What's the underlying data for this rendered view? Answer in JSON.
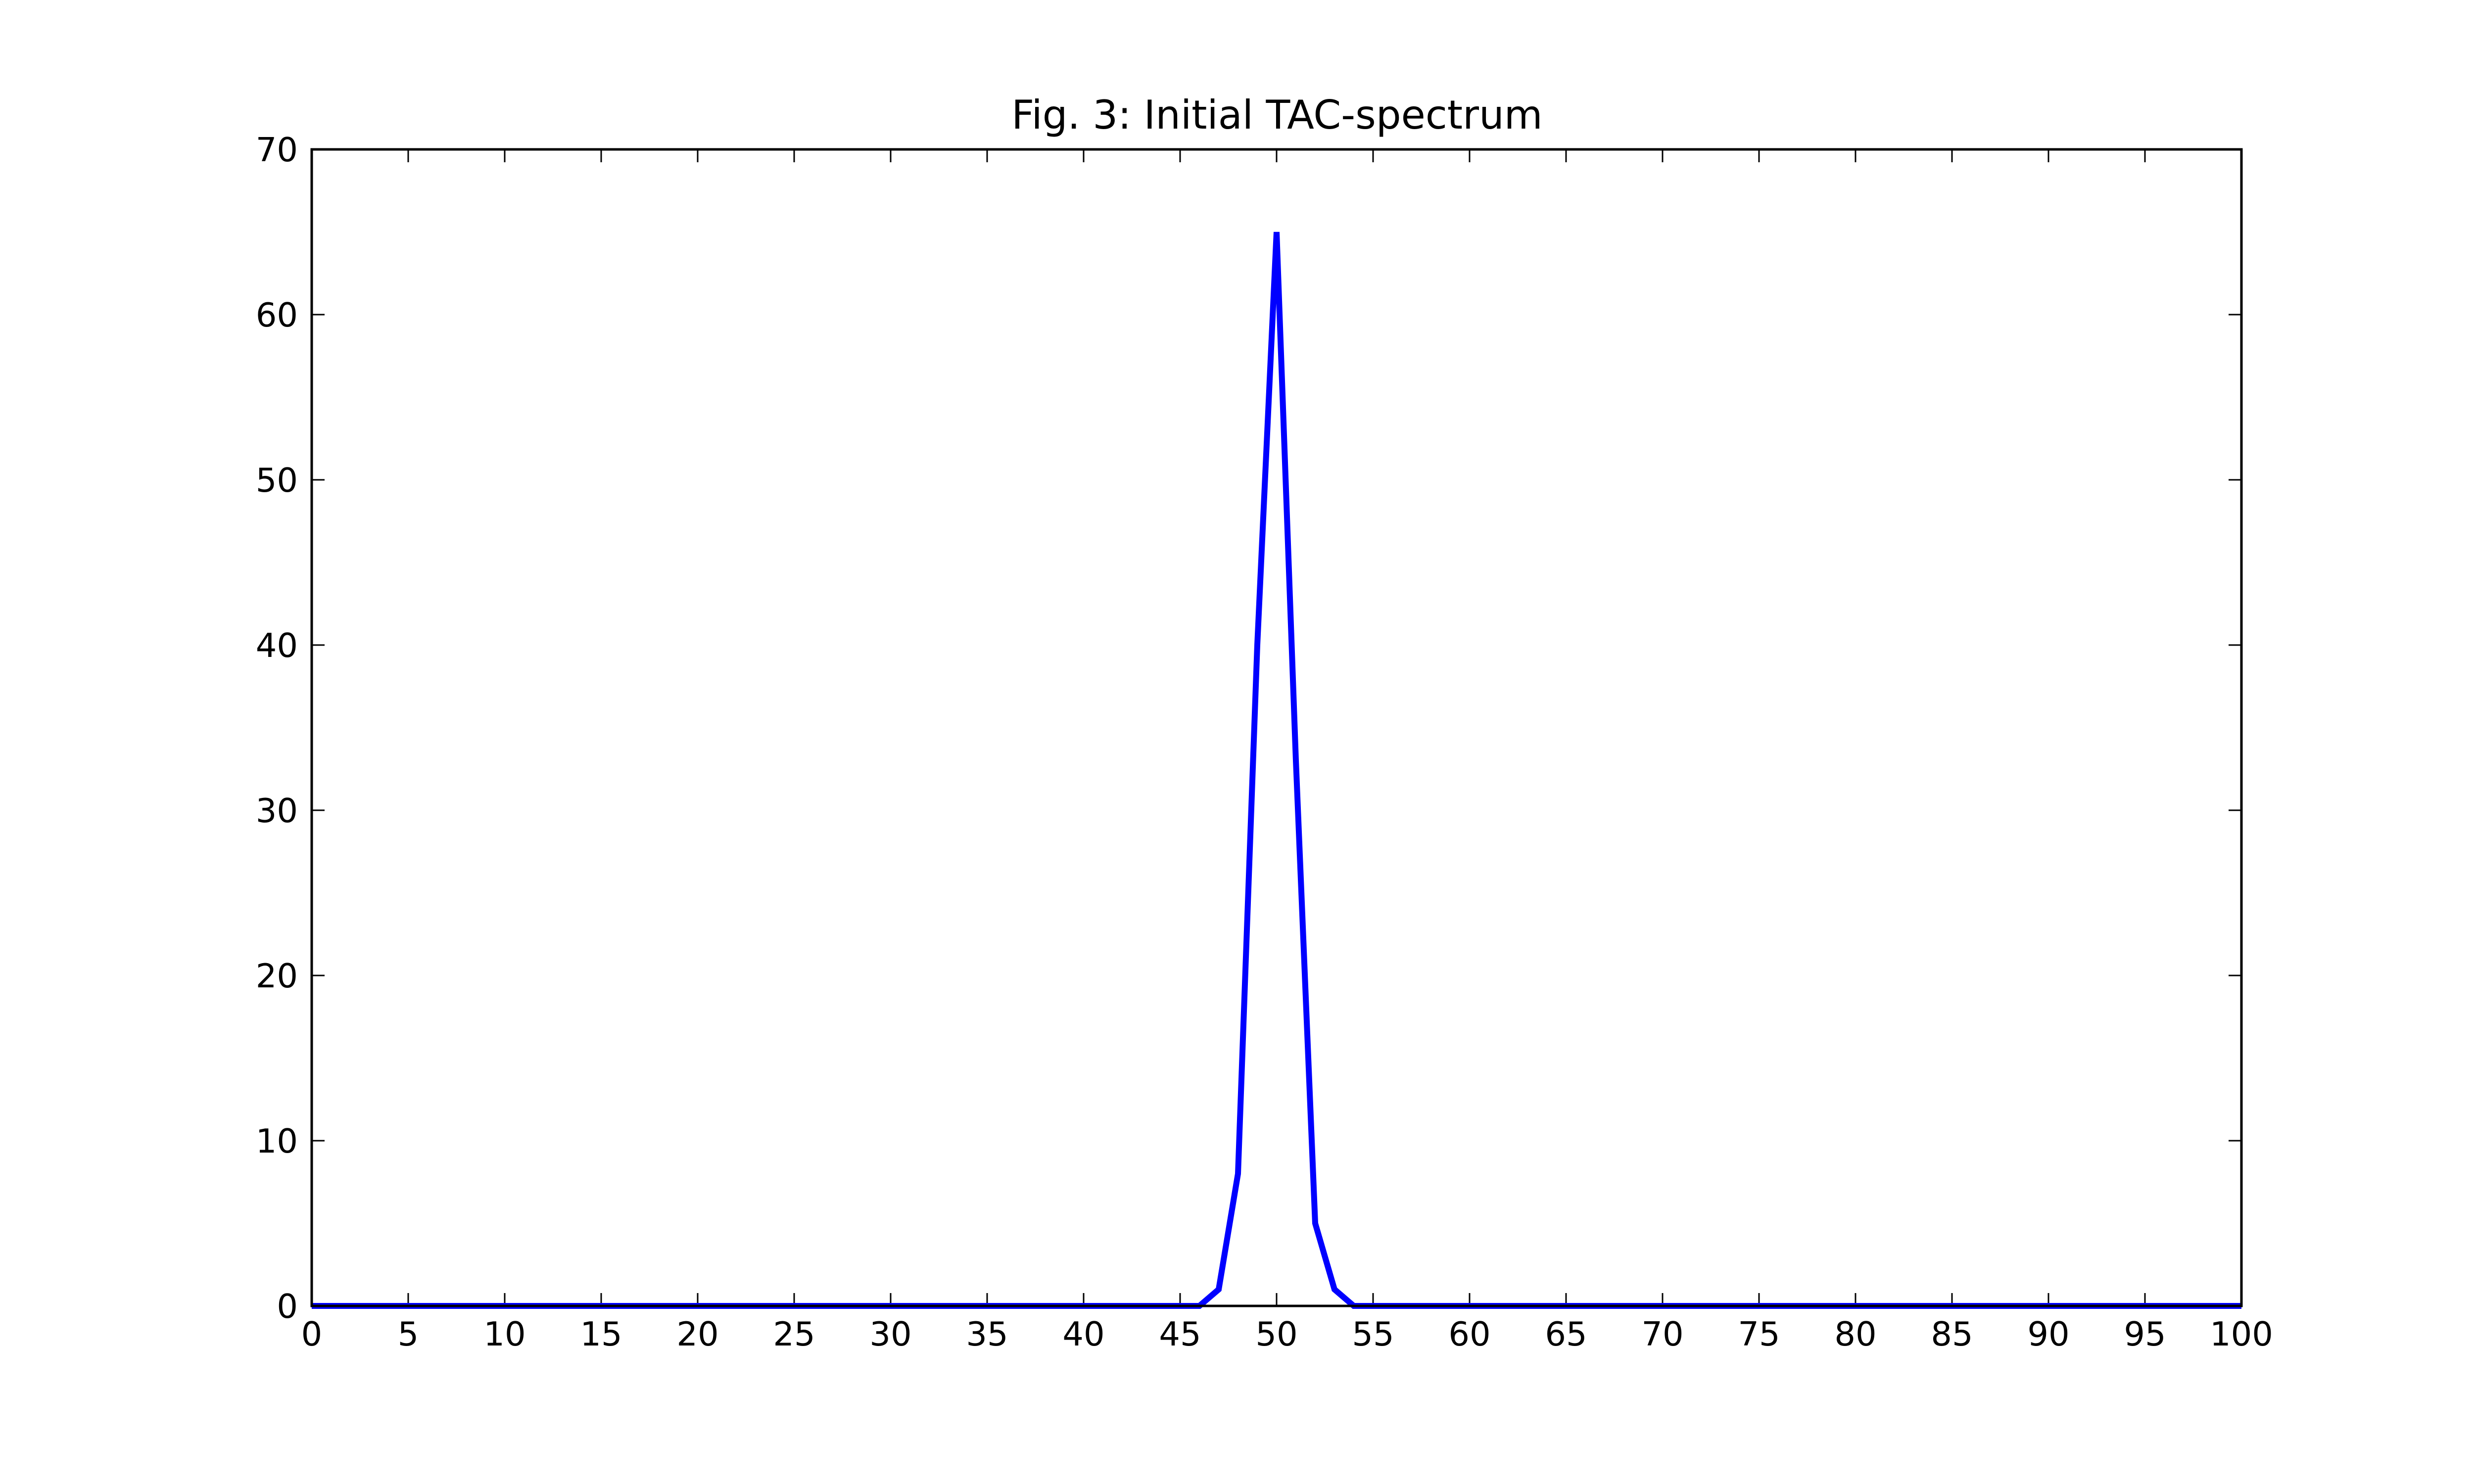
{
  "chart_data": {
    "type": "line",
    "title": "Fig. 3: Initial TAC-spectrum",
    "xlabel": "",
    "ylabel": "",
    "xlim": [
      0,
      100
    ],
    "ylim": [
      0,
      70
    ],
    "xticks": [
      0,
      5,
      10,
      15,
      20,
      25,
      30,
      35,
      40,
      45,
      50,
      55,
      60,
      65,
      70,
      75,
      80,
      85,
      90,
      95,
      100
    ],
    "yticks": [
      0,
      10,
      20,
      30,
      40,
      50,
      60,
      70
    ],
    "grid": false,
    "series": [
      {
        "color": "#0000ff",
        "x": [
          0,
          46,
          47,
          48,
          49,
          50,
          51,
          52,
          53,
          54,
          100
        ],
        "y": [
          0,
          0,
          1,
          8,
          40,
          65,
          33,
          5,
          1,
          0,
          0
        ]
      }
    ]
  }
}
